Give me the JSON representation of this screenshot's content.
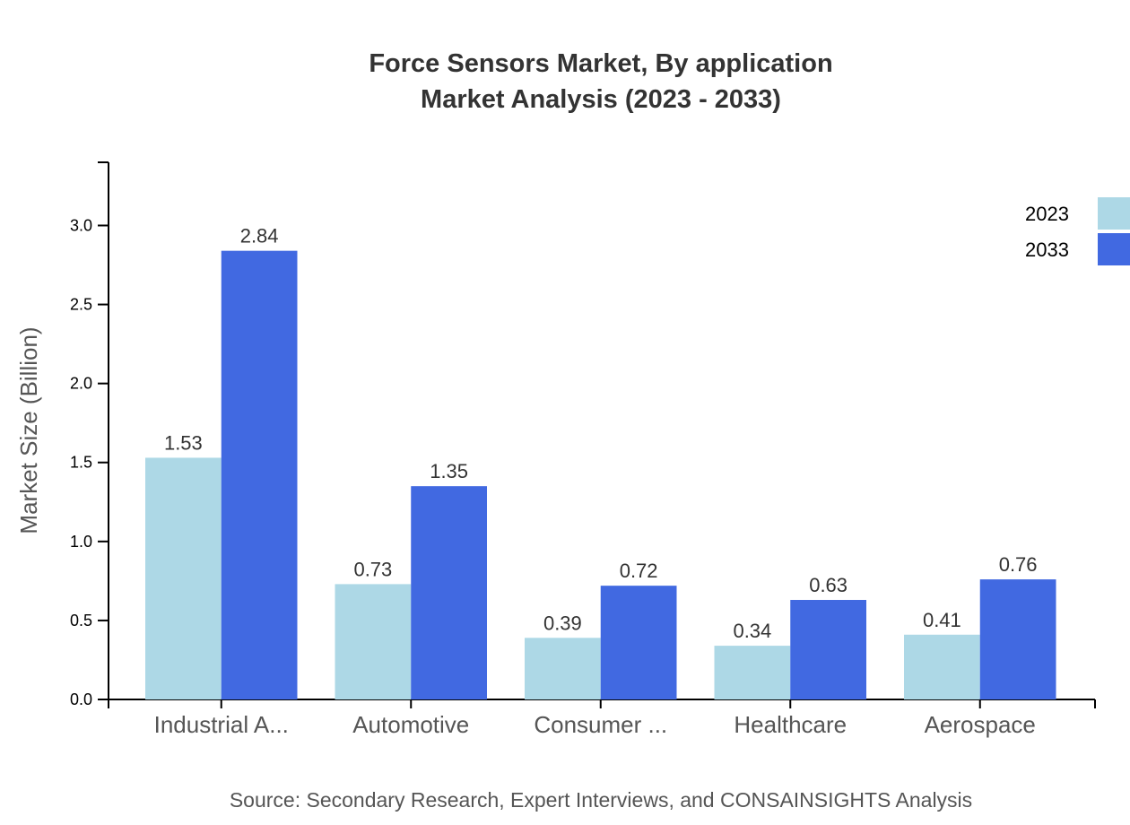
{
  "chart_data": {
    "type": "bar",
    "title": "Force Sensors Market, By application",
    "subtitle": "Market Analysis (2023 - 2033)",
    "xlabel": "",
    "ylabel": "Market Size (Billion)",
    "ylim": [
      0,
      3.4
    ],
    "yticks": [
      "0.0",
      "0.5",
      "1.0",
      "1.5",
      "2.0",
      "2.5",
      "3.0"
    ],
    "categories": [
      "Industrial A...",
      "Automotive",
      "Consumer ...",
      "Healthcare",
      "Aerospace"
    ],
    "series": [
      {
        "name": "2023",
        "color": "#add8e6",
        "values": [
          1.53,
          0.73,
          0.39,
          0.34,
          0.41
        ]
      },
      {
        "name": "2033",
        "color": "#4169e1",
        "values": [
          2.84,
          1.35,
          0.72,
          0.63,
          0.76
        ]
      }
    ],
    "legend_position": "top-right",
    "grid": false,
    "source": "Source: Secondary Research, Expert Interviews, and CONSAINSIGHTS Analysis"
  }
}
